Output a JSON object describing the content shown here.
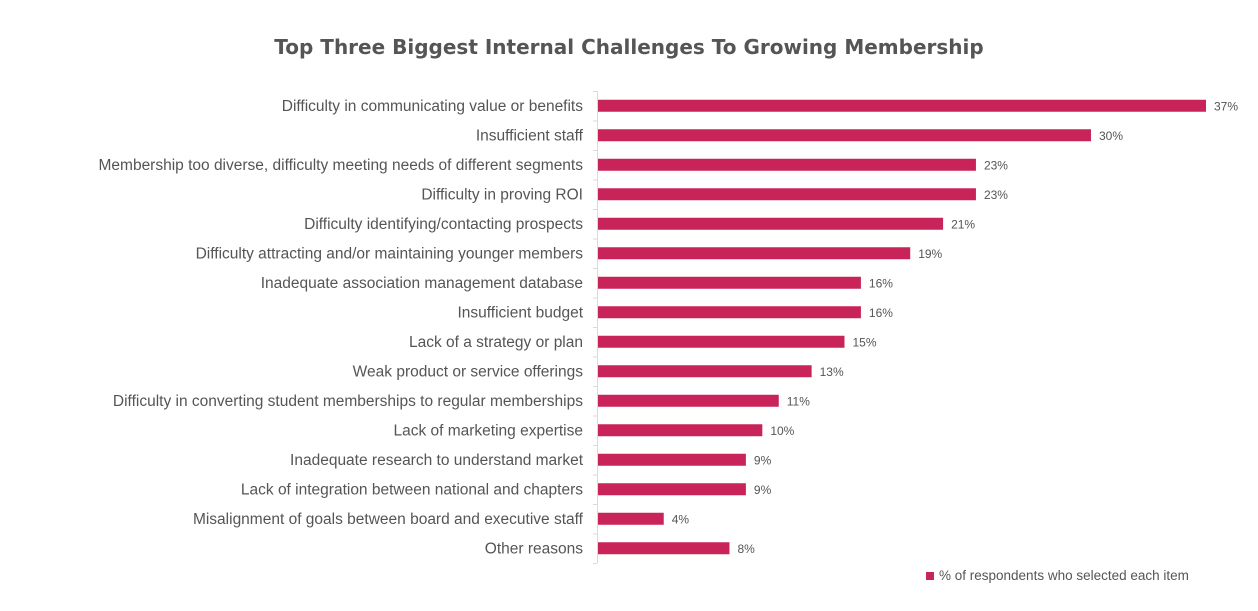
{
  "chart_data": {
    "type": "bar",
    "orientation": "horizontal",
    "title": "Top Three Biggest Internal Challenges To Growing Membership",
    "categories": [
      "Difficulty in communicating value or benefits",
      "Insufficient staff",
      "Membership too diverse, difficulty meeting needs of different segments",
      "Difficulty in proving ROI",
      "Difficulty identifying/contacting prospects",
      "Difficulty attracting and/or maintaining younger members",
      "Inadequate association management database",
      "Insufficient budget",
      "Lack of a strategy or plan",
      "Weak product or service offerings",
      "Difficulty in converting student memberships to regular memberships",
      "Lack of marketing expertise",
      "Inadequate research to understand market",
      "Lack of integration between national and chapters",
      "Misalignment of goals between board and executive staff",
      "Other reasons"
    ],
    "series": [
      {
        "name": "% of respondents who selected each item",
        "values": [
          37,
          30,
          23,
          23,
          21,
          19,
          16,
          16,
          15,
          13,
          11,
          10,
          9,
          9,
          4,
          8
        ],
        "labels": [
          "37%",
          "30%",
          "23%",
          "23%",
          "21%",
          "19%",
          "16%",
          "16%",
          "15%",
          "13%",
          "11%",
          "10%",
          "9%",
          "9%",
          "4%",
          "8%"
        ]
      }
    ],
    "xlabel": "",
    "ylabel": "",
    "xlim": [
      0,
      37
    ],
    "grid": false,
    "legend_position": "bottom-right",
    "bar_color": "#c8245a",
    "axis_color": "#d9d9d9"
  }
}
